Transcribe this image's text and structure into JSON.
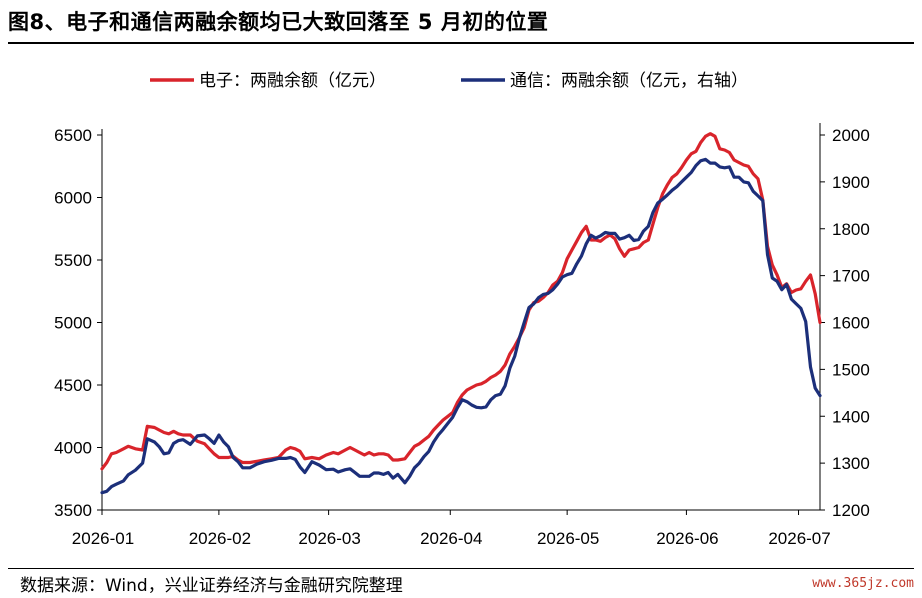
{
  "header": {
    "title": "图8、电子和通信两融余额均已大致回落至 5 月初的位置"
  },
  "footer": {
    "source": "数据来源：Wind，兴业证券经济与金融研究院整理",
    "watermark": "www.365jz.com"
  },
  "chart_data": {
    "type": "line",
    "title": "图8、电子和通信两融余额均已大致回落至 5 月初的位置",
    "xlabel": "",
    "ylabel": "",
    "legend_position": "top",
    "grid": false,
    "x_ticks": [
      "2026-01",
      "2026-02",
      "2026-03",
      "2026-04",
      "2026-05",
      "2026-06",
      "2026-07"
    ],
    "left_axis": {
      "ticks": [
        3500,
        4000,
        4500,
        5000,
        5500,
        6000,
        6500
      ],
      "ylim": [
        3500,
        6500
      ]
    },
    "right_axis": {
      "ticks": [
        1200,
        1300,
        1400,
        1500,
        1600,
        1700,
        1800,
        1900,
        2000
      ],
      "ylim": [
        1200,
        2000
      ]
    },
    "series": [
      {
        "name": "电子：两融余额（亿元）",
        "axis": "left",
        "color": "#d9242b",
        "values": [
          [
            0,
            3830
          ],
          [
            2,
            3880
          ],
          [
            4,
            3950
          ],
          [
            6,
            3960
          ],
          [
            9,
            3990
          ],
          [
            11,
            4010
          ],
          [
            14,
            3990
          ],
          [
            17,
            3980
          ],
          [
            19,
            4170
          ],
          [
            22,
            4160
          ],
          [
            24,
            4140
          ],
          [
            26,
            4120
          ],
          [
            28,
            4110
          ],
          [
            30,
            4130
          ],
          [
            32,
            4110
          ],
          [
            34,
            4100
          ],
          [
            37,
            4100
          ],
          [
            40,
            4050
          ],
          [
            43,
            4030
          ],
          [
            45,
            3990
          ],
          [
            47,
            3950
          ],
          [
            49,
            3920
          ],
          [
            51,
            3920
          ],
          [
            53,
            3920
          ],
          [
            55,
            3930
          ],
          [
            57,
            3900
          ],
          [
            59,
            3880
          ],
          [
            62,
            3880
          ],
          [
            65,
            3890
          ],
          [
            68,
            3900
          ],
          [
            71,
            3910
          ],
          [
            74,
            3920
          ],
          [
            77,
            3980
          ],
          [
            79,
            4000
          ],
          [
            81,
            3990
          ],
          [
            83,
            3970
          ],
          [
            85,
            3910
          ],
          [
            88,
            3920
          ],
          [
            91,
            3910
          ],
          [
            94,
            3940
          ],
          [
            97,
            3960
          ],
          [
            99,
            3950
          ],
          [
            102,
            3980
          ],
          [
            104,
            4000
          ],
          [
            106,
            3980
          ],
          [
            108,
            3960
          ],
          [
            110,
            3940
          ],
          [
            112,
            3960
          ],
          [
            114,
            3940
          ],
          [
            116,
            3950
          ],
          [
            118,
            3950
          ],
          [
            120,
            3940
          ],
          [
            122,
            3900
          ],
          [
            124,
            3900
          ],
          [
            127,
            3910
          ],
          [
            129,
            3960
          ],
          [
            131,
            4010
          ],
          [
            133,
            4030
          ],
          [
            135,
            4060
          ],
          [
            137,
            4090
          ],
          [
            139,
            4140
          ],
          [
            141,
            4180
          ],
          [
            143,
            4220
          ],
          [
            145,
            4250
          ],
          [
            147,
            4280
          ],
          [
            149,
            4360
          ],
          [
            151,
            4420
          ],
          [
            153,
            4460
          ],
          [
            155,
            4480
          ],
          [
            157,
            4500
          ],
          [
            159,
            4510
          ],
          [
            161,
            4530
          ],
          [
            163,
            4560
          ],
          [
            165,
            4580
          ],
          [
            167,
            4610
          ],
          [
            169,
            4660
          ],
          [
            171,
            4750
          ],
          [
            173,
            4810
          ],
          [
            175,
            4880
          ],
          [
            177,
            4960
          ],
          [
            179,
            5100
          ],
          [
            181,
            5160
          ],
          [
            183,
            5170
          ],
          [
            185,
            5200
          ],
          [
            187,
            5240
          ],
          [
            189,
            5300
          ],
          [
            191,
            5330
          ],
          [
            193,
            5400
          ],
          [
            195,
            5510
          ],
          [
            197,
            5580
          ],
          [
            199,
            5650
          ],
          [
            201,
            5720
          ],
          [
            203,
            5770
          ],
          [
            205,
            5660
          ],
          [
            207,
            5660
          ],
          [
            209,
            5650
          ],
          [
            211,
            5680
          ],
          [
            213,
            5700
          ],
          [
            215,
            5670
          ],
          [
            217,
            5590
          ],
          [
            219,
            5530
          ],
          [
            221,
            5580
          ],
          [
            223,
            5590
          ],
          [
            225,
            5600
          ],
          [
            227,
            5640
          ],
          [
            229,
            5660
          ],
          [
            231,
            5790
          ],
          [
            233,
            5920
          ],
          [
            235,
            6030
          ],
          [
            237,
            6100
          ],
          [
            239,
            6160
          ],
          [
            241,
            6190
          ],
          [
            243,
            6240
          ],
          [
            245,
            6300
          ],
          [
            247,
            6350
          ],
          [
            249,
            6370
          ],
          [
            251,
            6440
          ],
          [
            253,
            6490
          ],
          [
            255,
            6510
          ],
          [
            257,
            6490
          ],
          [
            259,
            6390
          ],
          [
            261,
            6380
          ],
          [
            263,
            6360
          ],
          [
            265,
            6300
          ],
          [
            267,
            6280
          ],
          [
            269,
            6260
          ],
          [
            271,
            6250
          ],
          [
            273,
            6190
          ],
          [
            275,
            6150
          ],
          [
            277,
            5980
          ],
          [
            279,
            5610
          ],
          [
            281,
            5460
          ],
          [
            283,
            5380
          ],
          [
            285,
            5280
          ],
          [
            287,
            5310
          ],
          [
            289,
            5240
          ],
          [
            291,
            5260
          ],
          [
            293,
            5270
          ],
          [
            295,
            5330
          ],
          [
            297,
            5380
          ],
          [
            299,
            5230
          ],
          [
            301,
            5000
          ]
        ]
      },
      {
        "name": "通信：两融余额（亿元，右轴）",
        "axis": "right",
        "color": "#1c2f7a",
        "values": [
          [
            0,
            1237
          ],
          [
            2,
            1240
          ],
          [
            4,
            1250
          ],
          [
            6,
            1255
          ],
          [
            9,
            1262
          ],
          [
            11,
            1275
          ],
          [
            14,
            1285
          ],
          [
            17,
            1300
          ],
          [
            19,
            1352
          ],
          [
            22,
            1345
          ],
          [
            24,
            1335
          ],
          [
            26,
            1320
          ],
          [
            28,
            1322
          ],
          [
            30,
            1342
          ],
          [
            32,
            1348
          ],
          [
            34,
            1350
          ],
          [
            37,
            1340
          ],
          [
            40,
            1358
          ],
          [
            43,
            1360
          ],
          [
            45,
            1352
          ],
          [
            47,
            1342
          ],
          [
            49,
            1360
          ],
          [
            51,
            1345
          ],
          [
            53,
            1335
          ],
          [
            55,
            1312
          ],
          [
            57,
            1303
          ],
          [
            59,
            1290
          ],
          [
            62,
            1290
          ],
          [
            65,
            1298
          ],
          [
            68,
            1303
          ],
          [
            71,
            1306
          ],
          [
            74,
            1310
          ],
          [
            77,
            1310
          ],
          [
            79,
            1312
          ],
          [
            81,
            1308
          ],
          [
            83,
            1292
          ],
          [
            85,
            1280
          ],
          [
            88,
            1303
          ],
          [
            91,
            1296
          ],
          [
            94,
            1286
          ],
          [
            97,
            1287
          ],
          [
            99,
            1281
          ],
          [
            102,
            1286
          ],
          [
            104,
            1288
          ],
          [
            106,
            1280
          ],
          [
            108,
            1272
          ],
          [
            110,
            1272
          ],
          [
            112,
            1272
          ],
          [
            114,
            1279
          ],
          [
            116,
            1279
          ],
          [
            118,
            1276
          ],
          [
            120,
            1280
          ],
          [
            122,
            1268
          ],
          [
            124,
            1276
          ],
          [
            127,
            1258
          ],
          [
            129,
            1272
          ],
          [
            131,
            1290
          ],
          [
            133,
            1300
          ],
          [
            135,
            1314
          ],
          [
            137,
            1325
          ],
          [
            139,
            1345
          ],
          [
            141,
            1360
          ],
          [
            143,
            1372
          ],
          [
            145,
            1385
          ],
          [
            147,
            1398
          ],
          [
            149,
            1418
          ],
          [
            151,
            1435
          ],
          [
            153,
            1431
          ],
          [
            155,
            1424
          ],
          [
            157,
            1419
          ],
          [
            159,
            1418
          ],
          [
            161,
            1420
          ],
          [
            163,
            1435
          ],
          [
            165,
            1444
          ],
          [
            167,
            1447
          ],
          [
            169,
            1465
          ],
          [
            171,
            1503
          ],
          [
            173,
            1528
          ],
          [
            175,
            1567
          ],
          [
            177,
            1600
          ],
          [
            179,
            1632
          ],
          [
            181,
            1640
          ],
          [
            183,
            1653
          ],
          [
            185,
            1660
          ],
          [
            187,
            1662
          ],
          [
            189,
            1670
          ],
          [
            191,
            1682
          ],
          [
            193,
            1697
          ],
          [
            195,
            1702
          ],
          [
            197,
            1705
          ],
          [
            199,
            1725
          ],
          [
            201,
            1742
          ],
          [
            203,
            1768
          ],
          [
            205,
            1786
          ],
          [
            207,
            1780
          ],
          [
            209,
            1785
          ],
          [
            211,
            1792
          ],
          [
            213,
            1790
          ],
          [
            215,
            1790
          ],
          [
            217,
            1778
          ],
          [
            219,
            1781
          ],
          [
            221,
            1786
          ],
          [
            223,
            1775
          ],
          [
            225,
            1777
          ],
          [
            227,
            1795
          ],
          [
            229,
            1805
          ],
          [
            231,
            1835
          ],
          [
            233,
            1855
          ],
          [
            235,
            1863
          ],
          [
            237,
            1872
          ],
          [
            239,
            1882
          ],
          [
            241,
            1890
          ],
          [
            243,
            1900
          ],
          [
            245,
            1910
          ],
          [
            247,
            1920
          ],
          [
            249,
            1935
          ],
          [
            251,
            1945
          ],
          [
            253,
            1948
          ],
          [
            255,
            1940
          ],
          [
            257,
            1940
          ],
          [
            259,
            1932
          ],
          [
            261,
            1930
          ],
          [
            263,
            1932
          ],
          [
            265,
            1910
          ],
          [
            267,
            1910
          ],
          [
            269,
            1900
          ],
          [
            271,
            1898
          ],
          [
            273,
            1880
          ],
          [
            275,
            1870
          ],
          [
            277,
            1860
          ],
          [
            279,
            1745
          ],
          [
            281,
            1695
          ],
          [
            283,
            1688
          ],
          [
            285,
            1670
          ],
          [
            287,
            1681
          ],
          [
            289,
            1650
          ],
          [
            291,
            1640
          ],
          [
            293,
            1630
          ],
          [
            295,
            1602
          ],
          [
            297,
            1505
          ],
          [
            299,
            1460
          ],
          [
            301,
            1444
          ]
        ]
      }
    ],
    "legend": [
      "电子：两融余额（亿元）",
      "通信：两融余额（亿元，右轴）"
    ]
  }
}
